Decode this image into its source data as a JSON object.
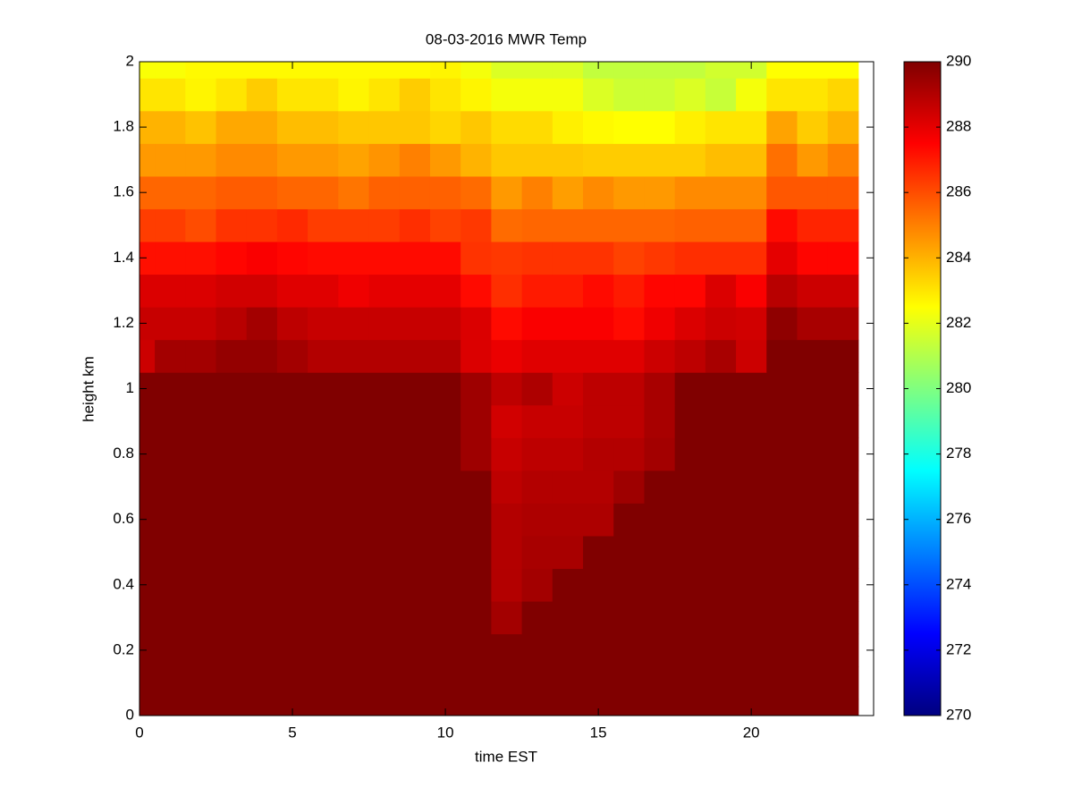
{
  "chart_data": {
    "type": "heatmap",
    "title": "08-03-2016 MWR Temp",
    "x_label": "time EST",
    "y_label": "height km",
    "x": [
      0,
      1,
      2,
      3,
      4,
      5,
      6,
      7,
      8,
      9,
      10,
      11,
      12,
      13,
      14,
      15,
      16,
      17,
      18,
      19,
      20,
      21,
      22,
      23
    ],
    "y": [
      0,
      0.1,
      0.2,
      0.3,
      0.4,
      0.5,
      0.6,
      0.7,
      0.8,
      0.9,
      1,
      1.1,
      1.2,
      1.3,
      1.4,
      1.5,
      1.6,
      1.7,
      1.8,
      1.9,
      2
    ],
    "z": [
      [
        290,
        290,
        290,
        290,
        290,
        290,
        290,
        290,
        290,
        290,
        290,
        290,
        290,
        290,
        290,
        290,
        290,
        290,
        290,
        290,
        290,
        290,
        290,
        290
      ],
      [
        290,
        290,
        290,
        290,
        290,
        290,
        290,
        290,
        290,
        290,
        290,
        290,
        290,
        290,
        290,
        290,
        290,
        290,
        290,
        290,
        290,
        290,
        290,
        290
      ],
      [
        290,
        290,
        290,
        290,
        290,
        290,
        290,
        290,
        290,
        290,
        290,
        290,
        290,
        290,
        290,
        290,
        290,
        290,
        290,
        290,
        290,
        290,
        290,
        290
      ],
      [
        290,
        290,
        290,
        290,
        290,
        290,
        290,
        290,
        290,
        290,
        290,
        290,
        289.3,
        290,
        290,
        290,
        290,
        290,
        290,
        290,
        290,
        290,
        290,
        290
      ],
      [
        290,
        290,
        290,
        290,
        290,
        290,
        290,
        290,
        290,
        290,
        290,
        290,
        289,
        289.3,
        290,
        290,
        290,
        290,
        290,
        290,
        290,
        290,
        290,
        290
      ],
      [
        290,
        290,
        290,
        290,
        290,
        290,
        290,
        290,
        290,
        290,
        290,
        290,
        289,
        289.2,
        289.2,
        290,
        290,
        290,
        290,
        290,
        290,
        290,
        290,
        290
      ],
      [
        290,
        290,
        290,
        290,
        290,
        290,
        290,
        290,
        290,
        290,
        290,
        290,
        289,
        289.1,
        289.1,
        289.1,
        290,
        290,
        290,
        290,
        290,
        290,
        290,
        290
      ],
      [
        290,
        290,
        290,
        290,
        290,
        290,
        290,
        290,
        290,
        290,
        290,
        290,
        288.8,
        289,
        289,
        289,
        289.4,
        290,
        290,
        290,
        290,
        290,
        290,
        290
      ],
      [
        290,
        290,
        290,
        290,
        290,
        290,
        290,
        290,
        290,
        290,
        290,
        289.4,
        288.6,
        288.8,
        288.8,
        289,
        289,
        289.3,
        290,
        290,
        290,
        290,
        290,
        290
      ],
      [
        290,
        290,
        290,
        290,
        290,
        290,
        290,
        290,
        290,
        290,
        290,
        289.4,
        288.4,
        288.6,
        288.6,
        288.8,
        288.8,
        289.2,
        290,
        290,
        290,
        290,
        290,
        290
      ],
      [
        290,
        290,
        290,
        290,
        290,
        290,
        290,
        290,
        290,
        290,
        290,
        289.4,
        288.8,
        289.1,
        288.5,
        288.8,
        288.8,
        289.2,
        290,
        290,
        290,
        290,
        290,
        290
      ],
      [
        288.5,
        289.3,
        289.3,
        289.6,
        289.6,
        289.3,
        289,
        289,
        289,
        289,
        289,
        288.2,
        287.9,
        288.1,
        288.1,
        288.1,
        288.1,
        288.5,
        288.8,
        289.2,
        288.5,
        290,
        290,
        290
      ],
      [
        288.6,
        288.6,
        288.6,
        288.9,
        289.3,
        288.8,
        288.6,
        288.6,
        288.6,
        288.6,
        288.6,
        288.2,
        287.3,
        287.6,
        287.6,
        287.6,
        287.3,
        287.8,
        288.2,
        288.5,
        288.4,
        289.7,
        289.2,
        289.2
      ],
      [
        288.2,
        288.2,
        288.2,
        288.4,
        288.4,
        288.1,
        288.1,
        287.8,
        288,
        288,
        288,
        287.3,
        286.6,
        287,
        287,
        287.3,
        287,
        287.4,
        287.4,
        288.2,
        287.6,
        288.9,
        288.5,
        288.5
      ],
      [
        287.2,
        287.2,
        287.2,
        287.4,
        287.6,
        287.4,
        287.3,
        287.3,
        287.3,
        287.3,
        287.3,
        286.5,
        286.4,
        286.5,
        286.5,
        286.5,
        286.2,
        286.4,
        286.6,
        286.6,
        286.6,
        288,
        287.4,
        287.4
      ],
      [
        286.3,
        286.3,
        286,
        286.5,
        286.5,
        286.7,
        286.3,
        286.3,
        286.3,
        286.6,
        286.2,
        286.4,
        285.4,
        285.5,
        285.5,
        285.5,
        285.5,
        285.5,
        285.6,
        285.6,
        285.6,
        287.3,
        286.8,
        286.8
      ],
      [
        285.5,
        285.5,
        285.5,
        285.7,
        285.7,
        285.5,
        285.5,
        285.2,
        285.6,
        285.6,
        285.6,
        285.4,
        284.5,
        285,
        284.4,
        284.8,
        284.5,
        284.5,
        284.8,
        284.8,
        284.8,
        285.8,
        285.8,
        285.8
      ],
      [
        284.5,
        284.5,
        284.5,
        284.8,
        284.8,
        284.5,
        284.5,
        284.3,
        284.6,
        285,
        284.5,
        284,
        283.6,
        283.6,
        283.6,
        283.5,
        283.5,
        283.5,
        283.5,
        283.8,
        283.8,
        285.3,
        284.5,
        285
      ],
      [
        284,
        284,
        283.7,
        284.2,
        284.2,
        283.8,
        283.8,
        283.6,
        283.6,
        283.6,
        283.3,
        283.6,
        283.2,
        283.2,
        282.8,
        282.6,
        282.5,
        282.5,
        282.8,
        283,
        283,
        284.3,
        283.5,
        284
      ],
      [
        283,
        283,
        282.7,
        283,
        283.5,
        283,
        283,
        282.7,
        283,
        283.5,
        283,
        282.7,
        282.3,
        282.3,
        282.3,
        281.8,
        281.5,
        281.5,
        281.8,
        281.4,
        282.3,
        283,
        283,
        283.3
      ],
      [
        282.4,
        282.4,
        282.6,
        282.6,
        282.6,
        282.6,
        282.6,
        282.6,
        282.6,
        282.6,
        282.7,
        282.3,
        281.8,
        281.8,
        281.8,
        281.3,
        281.3,
        281.3,
        281.3,
        281.6,
        281.6,
        282.5,
        282.5,
        282.5
      ]
    ],
    "xlim": [
      0,
      24
    ],
    "ylim": [
      0,
      2
    ],
    "xticks": [
      0,
      5,
      10,
      15,
      20
    ],
    "yticks": [
      0,
      0.2,
      0.4,
      0.6,
      0.8,
      1,
      1.2,
      1.4,
      1.6,
      1.8,
      2
    ],
    "colormap": "jet",
    "clim": [
      270,
      290
    ],
    "cticks": [
      270,
      272,
      274,
      276,
      278,
      280,
      282,
      284,
      286,
      288,
      290
    ]
  }
}
